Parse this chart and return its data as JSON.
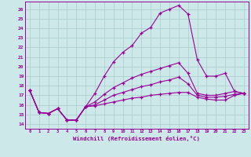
{
  "xlabel": "Windchill (Refroidissement éolien,°C)",
  "background_color": "#cce8e8",
  "grid_color": "#aacccc",
  "line_color": "#990099",
  "xlim": [
    -0.5,
    23.5
  ],
  "ylim": [
    13.5,
    26.8
  ],
  "xticks": [
    0,
    1,
    2,
    3,
    4,
    5,
    6,
    7,
    8,
    9,
    10,
    11,
    12,
    13,
    14,
    15,
    16,
    17,
    18,
    19,
    20,
    21,
    22,
    23
  ],
  "yticks": [
    14,
    15,
    16,
    17,
    18,
    19,
    20,
    21,
    22,
    23,
    24,
    25,
    26
  ],
  "lines": [
    {
      "x": [
        0,
        1,
        2,
        3,
        4,
        5,
        6,
        7,
        8,
        9,
        10,
        11,
        12,
        13,
        14,
        15,
        16,
        17,
        18,
        19,
        20,
        21,
        22,
        23
      ],
      "y": [
        17.5,
        15.2,
        15.1,
        15.6,
        14.4,
        14.4,
        15.8,
        17.2,
        19.0,
        20.5,
        21.5,
        22.2,
        23.5,
        24.1,
        25.6,
        26.0,
        26.4,
        25.5,
        20.7,
        19.0,
        19.0,
        19.3,
        17.4,
        17.2
      ]
    },
    {
      "x": [
        0,
        1,
        2,
        3,
        4,
        5,
        6,
        7,
        8,
        9,
        10,
        11,
        12,
        13,
        14,
        15,
        16,
        17,
        18,
        19,
        20,
        21,
        22,
        23
      ],
      "y": [
        17.5,
        15.2,
        15.1,
        15.6,
        14.4,
        14.4,
        15.8,
        16.3,
        17.1,
        17.8,
        18.3,
        18.8,
        19.2,
        19.5,
        19.8,
        20.1,
        20.4,
        19.3,
        17.2,
        17.0,
        17.0,
        17.2,
        17.4,
        17.2
      ]
    },
    {
      "x": [
        0,
        1,
        2,
        3,
        4,
        5,
        6,
        7,
        8,
        9,
        10,
        11,
        12,
        13,
        14,
        15,
        16,
        17,
        18,
        19,
        20,
        21,
        22,
        23
      ],
      "y": [
        17.5,
        15.2,
        15.1,
        15.6,
        14.4,
        14.4,
        15.8,
        16.0,
        16.5,
        17.0,
        17.3,
        17.6,
        17.9,
        18.1,
        18.4,
        18.6,
        18.9,
        18.2,
        17.0,
        16.8,
        16.8,
        16.9,
        17.1,
        17.2
      ]
    },
    {
      "x": [
        0,
        1,
        2,
        3,
        4,
        5,
        6,
        7,
        8,
        9,
        10,
        11,
        12,
        13,
        14,
        15,
        16,
        17,
        18,
        19,
        20,
        21,
        22,
        23
      ],
      "y": [
        17.5,
        15.2,
        15.1,
        15.6,
        14.4,
        14.4,
        15.8,
        15.9,
        16.1,
        16.3,
        16.5,
        16.7,
        16.8,
        17.0,
        17.1,
        17.2,
        17.3,
        17.3,
        16.8,
        16.6,
        16.5,
        16.5,
        17.0,
        17.2
      ]
    }
  ]
}
